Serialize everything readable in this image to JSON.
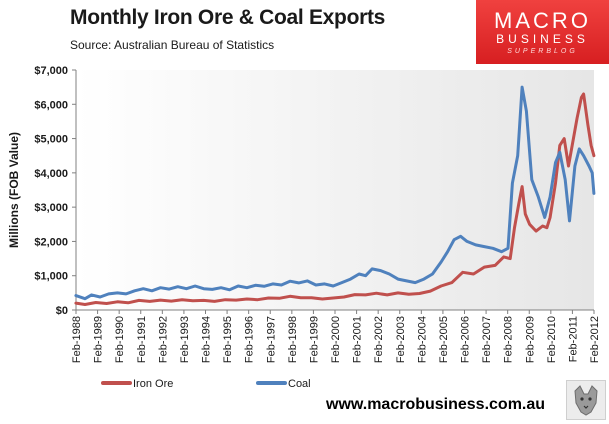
{
  "header": {
    "title": "Monthly  Iron Ore & Coal Exports",
    "subtitle": "Source:  Australian Bureau of Statistics"
  },
  "logo": {
    "line1": "MACRO",
    "line2": "BUSINESS",
    "line3": "SUPERBLOG"
  },
  "footer": {
    "website": "www.macrobusiness.com.au"
  },
  "colors": {
    "iron_ore": "#c0504d",
    "coal": "#4f81bd",
    "plot_bg_right": "#e8e8e8"
  },
  "chart_data": {
    "type": "line",
    "title": "Monthly  Iron Ore & Coal Exports",
    "ylabel": "Millions (FOB Value)",
    "xlabel": "",
    "ylim": [
      0,
      7000
    ],
    "xlim": [
      1988.083,
      2012.083
    ],
    "yticks": [
      0,
      1000,
      2000,
      3000,
      4000,
      5000,
      6000,
      7000
    ],
    "ytick_labels": [
      "$0",
      "$1,000",
      "$2,000",
      "$3,000",
      "$4,000",
      "$5,000",
      "$6,000",
      "$7,000"
    ],
    "xtick_labels": [
      "Feb-1988",
      "Feb-1989",
      "Feb-1990",
      "Feb-1991",
      "Feb-1992",
      "Feb-1993",
      "Feb-1994",
      "Feb-1995",
      "Feb-1996",
      "Feb-1997",
      "Feb-1998",
      "Feb-1999",
      "Feb-2000",
      "Feb-2001",
      "Feb-2002",
      "Feb-2003",
      "Feb-2004",
      "Feb-2005",
      "Feb-2006",
      "Feb-2007",
      "Feb-2008",
      "Feb-2009",
      "Feb-2010",
      "Feb-2011",
      "Feb-2012"
    ],
    "legend": [
      "Iron Ore",
      "Coal"
    ],
    "legend_position": "bottom-left",
    "grid": false,
    "series": [
      {
        "name": "Iron Ore",
        "color": "#c0504d",
        "points": [
          [
            1988.08,
            200
          ],
          [
            1988.5,
            160
          ],
          [
            1989,
            220
          ],
          [
            1989.5,
            190
          ],
          [
            1990,
            240
          ],
          [
            1990.5,
            210
          ],
          [
            1991,
            280
          ],
          [
            1991.5,
            250
          ],
          [
            1992,
            290
          ],
          [
            1992.5,
            260
          ],
          [
            1993,
            300
          ],
          [
            1993.5,
            270
          ],
          [
            1994,
            280
          ],
          [
            1994.5,
            250
          ],
          [
            1995,
            300
          ],
          [
            1995.5,
            290
          ],
          [
            1996,
            320
          ],
          [
            1996.5,
            300
          ],
          [
            1997,
            350
          ],
          [
            1997.5,
            340
          ],
          [
            1998,
            400
          ],
          [
            1998.5,
            360
          ],
          [
            1999,
            360
          ],
          [
            1999.5,
            320
          ],
          [
            2000,
            350
          ],
          [
            2000.5,
            380
          ],
          [
            2001,
            450
          ],
          [
            2001.5,
            440
          ],
          [
            2002,
            490
          ],
          [
            2002.5,
            440
          ],
          [
            2003,
            500
          ],
          [
            2003.5,
            460
          ],
          [
            2004,
            480
          ],
          [
            2004.5,
            550
          ],
          [
            2005,
            700
          ],
          [
            2005.5,
            800
          ],
          [
            2006,
            1100
          ],
          [
            2006.5,
            1050
          ],
          [
            2007,
            1250
          ],
          [
            2007.5,
            1300
          ],
          [
            2007.9,
            1550
          ],
          [
            2008.2,
            1500
          ],
          [
            2008.4,
            2400
          ],
          [
            2008.6,
            3100
          ],
          [
            2008.75,
            3600
          ],
          [
            2008.9,
            2800
          ],
          [
            2009.1,
            2500
          ],
          [
            2009.4,
            2300
          ],
          [
            2009.7,
            2450
          ],
          [
            2009.9,
            2400
          ],
          [
            2010.05,
            2700
          ],
          [
            2010.3,
            3700
          ],
          [
            2010.5,
            4800
          ],
          [
            2010.7,
            5000
          ],
          [
            2010.9,
            4200
          ],
          [
            2011.1,
            4900
          ],
          [
            2011.3,
            5600
          ],
          [
            2011.5,
            6200
          ],
          [
            2011.6,
            6300
          ],
          [
            2011.8,
            5400
          ],
          [
            2011.95,
            4800
          ],
          [
            2012.08,
            4500
          ]
        ]
      },
      {
        "name": "Coal",
        "color": "#4f81bd",
        "points": [
          [
            1988.08,
            420
          ],
          [
            1988.5,
            330
          ],
          [
            1988.8,
            440
          ],
          [
            1989.2,
            380
          ],
          [
            1989.6,
            470
          ],
          [
            1990,
            500
          ],
          [
            1990.4,
            470
          ],
          [
            1990.8,
            560
          ],
          [
            1991.2,
            620
          ],
          [
            1991.6,
            560
          ],
          [
            1992,
            650
          ],
          [
            1992.4,
            610
          ],
          [
            1992.8,
            680
          ],
          [
            1993.2,
            620
          ],
          [
            1993.6,
            700
          ],
          [
            1994,
            620
          ],
          [
            1994.4,
            600
          ],
          [
            1994.8,
            650
          ],
          [
            1995.2,
            590
          ],
          [
            1995.6,
            700
          ],
          [
            1996,
            650
          ],
          [
            1996.4,
            720
          ],
          [
            1996.8,
            690
          ],
          [
            1997.2,
            760
          ],
          [
            1997.6,
            730
          ],
          [
            1998,
            840
          ],
          [
            1998.4,
            790
          ],
          [
            1998.8,
            850
          ],
          [
            1999.2,
            730
          ],
          [
            1999.6,
            760
          ],
          [
            2000,
            700
          ],
          [
            2000.4,
            800
          ],
          [
            2000.8,
            900
          ],
          [
            2001.2,
            1050
          ],
          [
            2001.5,
            1000
          ],
          [
            2001.8,
            1200
          ],
          [
            2002.2,
            1150
          ],
          [
            2002.6,
            1050
          ],
          [
            2003,
            900
          ],
          [
            2003.4,
            850
          ],
          [
            2003.8,
            800
          ],
          [
            2004.2,
            900
          ],
          [
            2004.6,
            1050
          ],
          [
            2005,
            1400
          ],
          [
            2005.3,
            1700
          ],
          [
            2005.6,
            2050
          ],
          [
            2005.9,
            2150
          ],
          [
            2006.2,
            2000
          ],
          [
            2006.6,
            1900
          ],
          [
            2007,
            1850
          ],
          [
            2007.4,
            1800
          ],
          [
            2007.8,
            1700
          ],
          [
            2008.1,
            1800
          ],
          [
            2008.3,
            3700
          ],
          [
            2008.55,
            4500
          ],
          [
            2008.75,
            6500
          ],
          [
            2008.95,
            5800
          ],
          [
            2009.2,
            3800
          ],
          [
            2009.5,
            3300
          ],
          [
            2009.8,
            2700
          ],
          [
            2010.05,
            3300
          ],
          [
            2010.3,
            4300
          ],
          [
            2010.5,
            4600
          ],
          [
            2010.75,
            3800
          ],
          [
            2010.95,
            2600
          ],
          [
            2011.2,
            4200
          ],
          [
            2011.4,
            4700
          ],
          [
            2011.6,
            4500
          ],
          [
            2011.85,
            4200
          ],
          [
            2012.0,
            4000
          ],
          [
            2012.08,
            3400
          ]
        ]
      }
    ]
  }
}
